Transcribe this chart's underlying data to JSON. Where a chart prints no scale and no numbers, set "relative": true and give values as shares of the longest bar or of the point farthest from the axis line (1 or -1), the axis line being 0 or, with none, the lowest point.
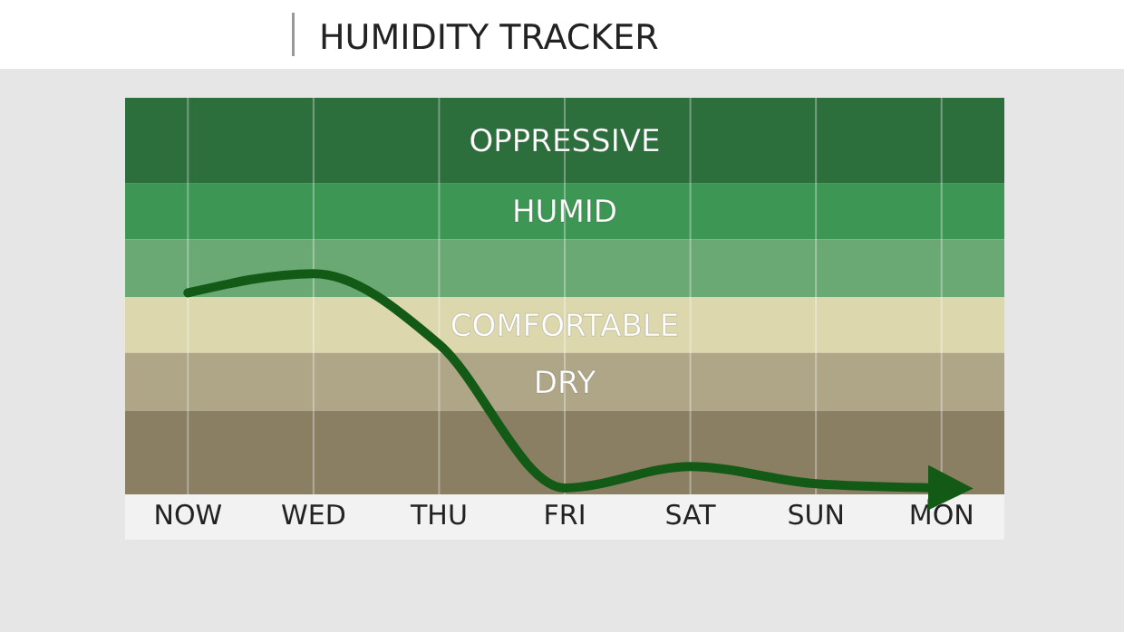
{
  "chart_data": {
    "type": "line",
    "title": "HUMIDITY TRACKER",
    "relative": true,
    "categories": [
      "NOW",
      "WED",
      "THU",
      "FRI",
      "SAT",
      "SUN",
      "MON"
    ],
    "series": [
      {
        "color": "#135a17",
        "values": [
          0.91,
          1,
          0.67,
          0,
          0.1,
          0.02,
          0
        ]
      }
    ],
    "grid": "x",
    "marker": "none",
    "line_style": "solid",
    "bands": [
      {
        "axis": "y",
        "from": 1.42,
        "to": 1.82,
        "label": "OPPRESSIVE",
        "color": "#2c6e3c"
      },
      {
        "axis": "y",
        "from": 1.16,
        "to": 1.42,
        "label": "HUMID",
        "color": "#3d9653"
      },
      {
        "axis": "y",
        "from": 0.89,
        "to": 1.16,
        "color": "#6aa874"
      },
      {
        "axis": "y",
        "from": 0.63,
        "to": 0.89,
        "label": "COMFORTABLE",
        "color": "#dcd7ac"
      },
      {
        "axis": "y",
        "from": 0.36,
        "to": 0.63,
        "label": "DRY",
        "color": "#aea686"
      },
      {
        "axis": "y",
        "from": -0.03,
        "to": 0.36,
        "color": "#8a7f63"
      }
    ]
  }
}
